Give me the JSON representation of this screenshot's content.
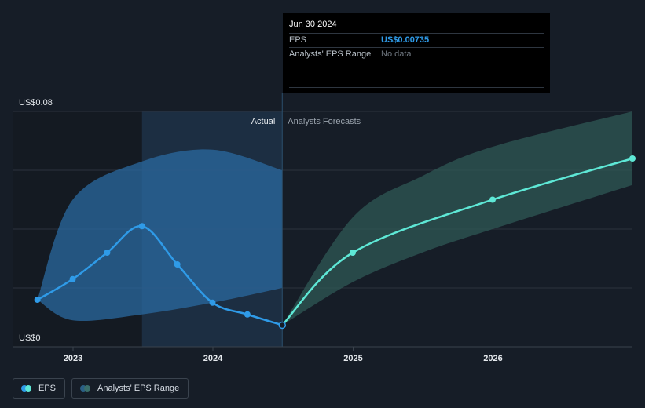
{
  "chart_data": {
    "type": "line",
    "y_axis": {
      "top_label": "US$0.08",
      "bottom_label": "US$0",
      "ylim": [
        0,
        0.08
      ]
    },
    "x_ticks": [
      "2023",
      "2024",
      "2025",
      "2026"
    ],
    "divider_labels": {
      "left": "Actual",
      "right": "Analysts Forecasts"
    },
    "series": [
      {
        "name": "EPS",
        "kind": "actual",
        "color": "#2f9be8",
        "points": [
          {
            "x": "2022-09-30",
            "y": 0.016
          },
          {
            "x": "2022-12-31",
            "y": 0.023
          },
          {
            "x": "2023-03-31",
            "y": 0.032
          },
          {
            "x": "2023-06-30",
            "y": 0.041
          },
          {
            "x": "2023-09-30",
            "y": 0.028
          },
          {
            "x": "2023-12-31",
            "y": 0.015
          },
          {
            "x": "2024-03-31",
            "y": 0.011
          },
          {
            "x": "2024-06-30",
            "y": 0.00735
          }
        ]
      },
      {
        "name": "EPS",
        "kind": "forecast",
        "color": "#5ee8d6",
        "points": [
          {
            "x": "2024-06-30",
            "y": 0.00735
          },
          {
            "x": "2024-12-31",
            "y": 0.032
          },
          {
            "x": "2025-12-31",
            "y": 0.05
          },
          {
            "x": "2026-12-31",
            "y": 0.064
          }
        ]
      }
    ],
    "range_bands": [
      {
        "name": "Analysts' EPS Range",
        "kind": "actual",
        "color": "#2a6aa0",
        "x": [
          "2022-09-30",
          "2022-12-31",
          "2023-06-30",
          "2023-12-31",
          "2024-06-30"
        ],
        "high": [
          0.016,
          0.05,
          0.063,
          0.067,
          0.06
        ],
        "low": [
          0.016,
          0.009,
          0.011,
          0.015,
          0.02
        ]
      },
      {
        "name": "Analysts' EPS Range",
        "kind": "forecast",
        "color": "#2f5a57",
        "x": [
          "2024-06-30",
          "2024-12-31",
          "2025-06-30",
          "2025-12-31",
          "2026-12-31"
        ],
        "high": [
          0.00735,
          0.044,
          0.058,
          0.068,
          0.08
        ],
        "low": [
          0.00735,
          0.022,
          0.032,
          0.04,
          0.055
        ]
      }
    ],
    "highlight": {
      "from": "2023-06-30",
      "to": "2024-06-30"
    },
    "tooltip": {
      "date": "Jun 30 2024",
      "rows": [
        {
          "label": "EPS",
          "value": "US$0.00735"
        },
        {
          "label": "Analysts' EPS Range",
          "value": "No data"
        }
      ]
    },
    "legend": [
      {
        "label": "EPS"
      },
      {
        "label": "Analysts' EPS Range"
      }
    ],
    "grid": true,
    "legend_position": "bottom-left"
  }
}
